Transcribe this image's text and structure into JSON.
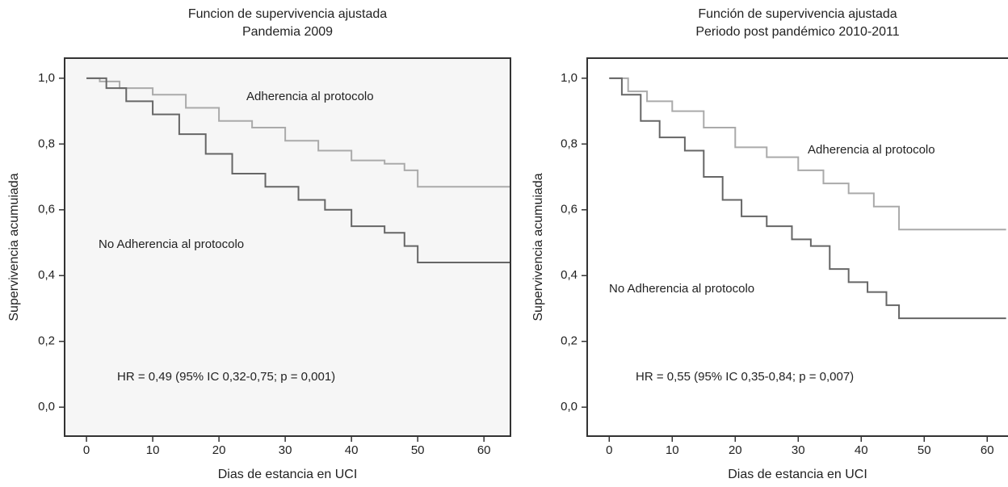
{
  "chart_data": [
    {
      "type": "step",
      "title": "Funcion de supervivencia ajustada",
      "subtitle": "Pandemia 2009",
      "xlabel": "Dias de estancia en UCI",
      "ylabel": "Supervivencia acumuiada",
      "annotation": "HR = 0,49 (95% IC 0,32-0,75; p = 0,001)",
      "xlim": [
        -3.3,
        64
      ],
      "ylim": [
        -0.088,
        1.061
      ],
      "xticks": [
        0,
        10,
        20,
        30,
        40,
        50,
        60
      ],
      "yticks": [
        {
          "value": 0,
          "label": "0,0"
        },
        {
          "value": 0.2,
          "label": "0,2"
        },
        {
          "value": 0.4,
          "label": "0,4"
        },
        {
          "value": 0.6,
          "label": "0,6"
        },
        {
          "value": 0.8,
          "label": "0,8"
        },
        {
          "value": 1,
          "label": "1,0"
        }
      ],
      "background": "#f6f6f6",
      "series": [
        {
          "name": "Adherencia al protocolo",
          "color": "#aaaaaa",
          "x": [
            0,
            2,
            5,
            10,
            15,
            20,
            25,
            30,
            35,
            40,
            45,
            48,
            50,
            64
          ],
          "values": [
            1.0,
            0.99,
            0.97,
            0.95,
            0.91,
            0.87,
            0.85,
            0.81,
            0.78,
            0.75,
            0.74,
            0.72,
            0.67,
            0.67
          ]
        },
        {
          "name": "No Adherencia al protocolo",
          "color": "#666666",
          "x": [
            0,
            3,
            6,
            10,
            14,
            18,
            22,
            27,
            32,
            36,
            40,
            45,
            48,
            50,
            64
          ],
          "values": [
            1.0,
            0.97,
            0.93,
            0.89,
            0.83,
            0.77,
            0.71,
            0.67,
            0.63,
            0.6,
            0.55,
            0.53,
            0.49,
            0.44,
            0.44
          ]
        }
      ]
    },
    {
      "type": "step",
      "title": "Función de supervivencia ajustada",
      "subtitle": "Periodo post pandémico 2010-2011",
      "xlabel": "Dias de estancia en UCI",
      "ylabel": "Supervivencia acumuiada",
      "annotation": "HR = 0,55 (95% IC 0,35-0,84; p = 0,007)",
      "xlim": [
        -3.5,
        63.3
      ],
      "ylim": [
        -0.088,
        1.061
      ],
      "xticks": [
        0,
        10,
        20,
        30,
        40,
        50,
        60
      ],
      "yticks": [
        {
          "value": 0,
          "label": "0,0"
        },
        {
          "value": 0.2,
          "label": "0,2"
        },
        {
          "value": 0.4,
          "label": "0,4"
        },
        {
          "value": 0.6,
          "label": "0,6"
        },
        {
          "value": 0.8,
          "label": "0,8"
        },
        {
          "value": 1,
          "label": "1,0"
        }
      ],
      "background": "#ffffff",
      "series": [
        {
          "name": "Adherencia al protocolo",
          "color": "#aaaaaa",
          "x": [
            0,
            3,
            6,
            10,
            15,
            20,
            25,
            30,
            34,
            38,
            42,
            46,
            63
          ],
          "values": [
            1.0,
            0.96,
            0.93,
            0.9,
            0.85,
            0.79,
            0.76,
            0.72,
            0.68,
            0.65,
            0.61,
            0.54,
            0.54
          ]
        },
        {
          "name": "No Adherencia al protocolo",
          "color": "#666666",
          "x": [
            0,
            2,
            5,
            8,
            12,
            15,
            18,
            21,
            25,
            29,
            32,
            35,
            38,
            41,
            44,
            46,
            63
          ],
          "values": [
            1.0,
            0.95,
            0.87,
            0.82,
            0.78,
            0.7,
            0.63,
            0.58,
            0.55,
            0.51,
            0.49,
            0.42,
            0.38,
            0.35,
            0.31,
            0.27,
            0.27
          ]
        }
      ]
    }
  ]
}
